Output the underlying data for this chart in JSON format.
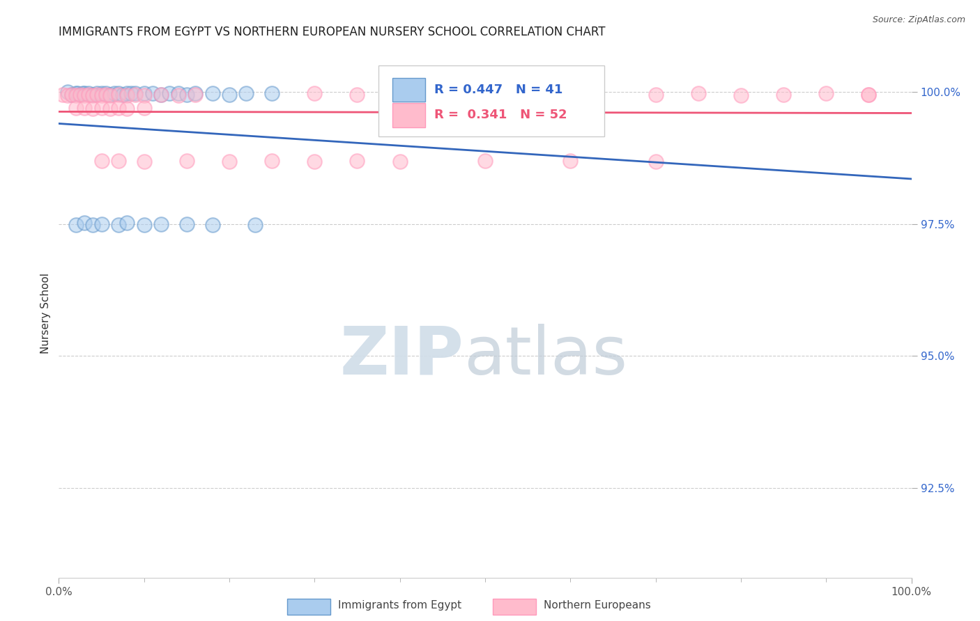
{
  "title": "IMMIGRANTS FROM EGYPT VS NORTHERN EUROPEAN NURSERY SCHOOL CORRELATION CHART",
  "source": "Source: ZipAtlas.com",
  "ylabel": "Nursery School",
  "xlim": [
    0.0,
    1.0
  ],
  "ylim": [
    0.908,
    1.008
  ],
  "yticks": [
    0.925,
    0.95,
    0.975,
    1.0
  ],
  "ytick_labels": [
    "92.5%",
    "95.0%",
    "97.5%",
    "100.0%"
  ],
  "xtick_labels": [
    "0.0%",
    "100.0%"
  ],
  "xticks": [
    0.0,
    1.0
  ],
  "blue_R": 0.447,
  "blue_N": 41,
  "pink_R": 0.341,
  "pink_N": 52,
  "blue_color": "#6699CC",
  "pink_color": "#FF99BB",
  "blue_label": "Immigrants from Egypt",
  "pink_label": "Northern Europeans",
  "title_fontsize": 12,
  "axis_label_fontsize": 11,
  "tick_fontsize": 11,
  "background_color": "#FFFFFF",
  "blue_x": [
    0.01,
    0.015,
    0.02,
    0.022,
    0.025,
    0.028,
    0.03,
    0.035,
    0.04,
    0.045,
    0.05,
    0.055,
    0.06,
    0.065,
    0.07,
    0.075,
    0.08,
    0.085,
    0.09,
    0.1,
    0.11,
    0.12,
    0.13,
    0.14,
    0.15,
    0.16,
    0.18,
    0.2,
    0.22,
    0.25,
    0.02,
    0.03,
    0.04,
    0.05,
    0.07,
    0.08,
    0.1,
    0.12,
    0.15,
    0.18,
    0.23
  ],
  "blue_y": [
    1.0,
    0.9995,
    0.9998,
    0.9997,
    0.9995,
    0.9998,
    0.9997,
    0.9998,
    0.9995,
    0.9998,
    0.9997,
    0.9998,
    0.9995,
    0.9997,
    0.9998,
    0.9995,
    0.9997,
    0.9998,
    0.9997,
    0.9998,
    0.9997,
    0.9995,
    0.9998,
    0.9997,
    0.9995,
    0.9997,
    0.9998,
    0.9995,
    0.9997,
    0.9998,
    0.9748,
    0.9752,
    0.9748,
    0.975,
    0.9748,
    0.9752,
    0.9748,
    0.975,
    0.975,
    0.9748,
    0.9748
  ],
  "pink_x": [
    0.005,
    0.01,
    0.015,
    0.02,
    0.025,
    0.03,
    0.035,
    0.04,
    0.045,
    0.05,
    0.055,
    0.06,
    0.07,
    0.08,
    0.09,
    0.1,
    0.12,
    0.14,
    0.16,
    0.02,
    0.03,
    0.04,
    0.05,
    0.06,
    0.07,
    0.08,
    0.1,
    0.3,
    0.35,
    0.4,
    0.45,
    0.5,
    0.6,
    0.7,
    0.75,
    0.8,
    0.85,
    0.9,
    0.95,
    0.05,
    0.07,
    0.1,
    0.15,
    0.2,
    0.25,
    0.3,
    0.35,
    0.4,
    0.5,
    0.6,
    0.7,
    0.95
  ],
  "pink_y": [
    0.9995,
    0.9993,
    0.9995,
    0.9993,
    0.9995,
    0.9993,
    0.9995,
    0.9993,
    0.9995,
    0.9993,
    0.9995,
    0.9993,
    0.9995,
    0.9993,
    0.9995,
    0.9993,
    0.9995,
    0.9993,
    0.9995,
    0.997,
    0.997,
    0.9968,
    0.997,
    0.9968,
    0.997,
    0.9968,
    0.997,
    0.9998,
    0.9995,
    0.9993,
    0.9998,
    0.9995,
    0.9998,
    0.9995,
    0.9998,
    0.9993,
    0.9995,
    0.9998,
    0.9995,
    0.987,
    0.987,
    0.9868,
    0.987,
    0.9868,
    0.987,
    0.9868,
    0.987,
    0.9868,
    0.987,
    0.987,
    0.9868,
    0.9995
  ]
}
